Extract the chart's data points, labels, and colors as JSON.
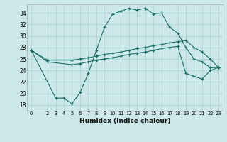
{
  "xlabel": "Humidex (Indice chaleur)",
  "bg_color": "#cce8e8",
  "line_color": "#1a6e6a",
  "grid_color": "#aad0d0",
  "xlim": [
    -0.5,
    23.5
  ],
  "ylim": [
    17,
    35.5
  ],
  "xticks": [
    0,
    2,
    3,
    4,
    5,
    6,
    7,
    8,
    9,
    10,
    11,
    12,
    13,
    14,
    15,
    16,
    17,
    18,
    19,
    20,
    21,
    22,
    23
  ],
  "yticks": [
    18,
    20,
    22,
    24,
    26,
    28,
    30,
    32,
    34
  ],
  "line1_x": [
    0,
    3,
    4,
    5,
    6,
    7,
    8,
    9,
    10,
    11,
    12,
    13,
    14,
    15,
    16,
    17,
    18,
    19,
    20,
    21,
    22,
    23
  ],
  "line1_y": [
    27.5,
    19.2,
    19.2,
    18.2,
    20.2,
    23.5,
    27.5,
    31.5,
    33.8,
    34.3,
    34.8,
    34.5,
    34.8,
    33.8,
    34.0,
    31.5,
    30.5,
    28.0,
    26.0,
    25.5,
    24.5,
    24.5
  ],
  "line2_x": [
    0,
    2,
    5,
    6,
    7,
    8,
    9,
    10,
    11,
    12,
    13,
    14,
    15,
    16,
    17,
    18,
    19,
    20,
    21,
    22,
    23
  ],
  "line2_y": [
    27.5,
    25.8,
    25.8,
    26.0,
    26.2,
    26.5,
    26.8,
    27.0,
    27.2,
    27.5,
    27.8,
    28.0,
    28.3,
    28.5,
    28.8,
    29.0,
    29.2,
    28.0,
    27.2,
    26.0,
    24.5
  ],
  "line3_x": [
    0,
    2,
    5,
    6,
    7,
    8,
    9,
    10,
    11,
    12,
    13,
    14,
    15,
    16,
    17,
    18,
    19,
    20,
    21,
    22,
    23
  ],
  "line3_y": [
    27.5,
    25.5,
    25.0,
    25.2,
    25.5,
    25.8,
    26.0,
    26.2,
    26.5,
    26.8,
    27.0,
    27.2,
    27.5,
    27.8,
    28.0,
    28.2,
    23.5,
    23.0,
    22.5,
    24.0,
    24.5
  ]
}
